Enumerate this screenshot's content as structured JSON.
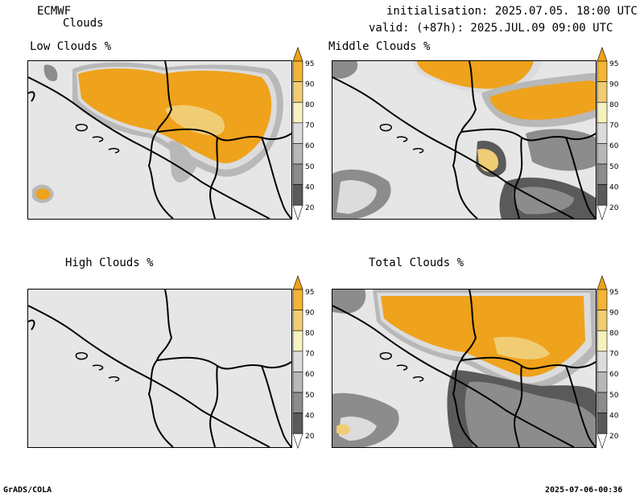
{
  "header": {
    "org": "ECMWF",
    "product": "Clouds",
    "init": "initialisation: 2025.07.05. 18:00 UTC",
    "valid": "valid: (+87h): 2025.JUL.09 09:00 UTC"
  },
  "panels": [
    {
      "title": "Low Clouds %"
    },
    {
      "title": "Middle Clouds %"
    },
    {
      "title": "High Clouds %"
    },
    {
      "title": "Total Clouds %"
    }
  ],
  "colorbar": {
    "labels": [
      "95",
      "90",
      "80",
      "70",
      "60",
      "50",
      "40",
      "20"
    ],
    "colors": [
      "#efa21b",
      "#f2b53a",
      "#f0cd74",
      "#f6f2bf",
      "#dcdcdc",
      "#b8b8b8",
      "#8c8c8c",
      "#5a5a5a",
      "#ffffff"
    ]
  },
  "footer": {
    "left": "GrADS/COLA",
    "right": "2025-07-06-00:36"
  },
  "colors": {
    "cloud_high": "#efa21b",
    "background": "#e6e6e6",
    "border": "#000000"
  }
}
